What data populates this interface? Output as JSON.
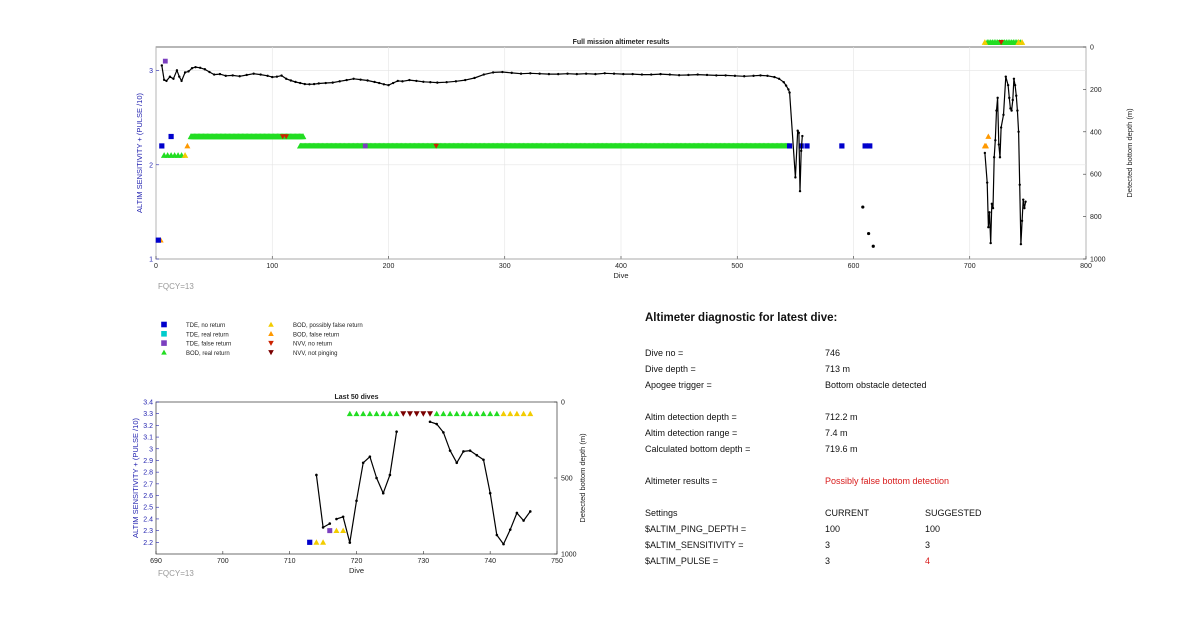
{
  "colors": {
    "tde_no_return": "#0000cc",
    "tde_real_return": "#00cccc",
    "tde_false_return": "#7b3fbf",
    "bod_real_return": "#22dd22",
    "bod_possibly_false": "#f2cc00",
    "bod_false_return": "#ff9900",
    "nvv_no_return": "#cc2200",
    "nvv_not_pinging": "#7a0000",
    "left_axis": "#2424b0",
    "depth_line": "#000000",
    "highlight": "#d81a1a"
  },
  "chart_data": [
    {
      "id": "full",
      "type": "scatter",
      "title": "Full mission altimeter results",
      "xlabel": "Dive",
      "ylabel": "ALTIM SENSITIVITY + (PULSE /10)",
      "y2label": "Detected bottom depth (m)",
      "xlim": [
        0,
        800
      ],
      "ylim": [
        1,
        3.25
      ],
      "y2lim": [
        0,
        1000
      ],
      "xticks": [
        "0",
        "100",
        "200",
        "300",
        "400",
        "500",
        "600",
        "700",
        "800"
      ],
      "yticks": [
        "1",
        "2",
        "3"
      ],
      "y2ticks": [
        "0",
        "200",
        "400",
        "600",
        "800",
        "1000"
      ],
      "grid": true,
      "footnote": "FQCY=13",
      "depth_series": [
        [
          5,
          87
        ],
        [
          7,
          155
        ],
        [
          9,
          160
        ],
        [
          12,
          140
        ],
        [
          15,
          150
        ],
        [
          18,
          110
        ],
        [
          20,
          140
        ],
        [
          22,
          160
        ],
        [
          25,
          120
        ],
        [
          28,
          115
        ],
        [
          31,
          100
        ],
        [
          34,
          95
        ],
        [
          38,
          98
        ],
        [
          42,
          105
        ],
        [
          46,
          118
        ],
        [
          50,
          130
        ],
        [
          55,
          128
        ],
        [
          60,
          136
        ],
        [
          66,
          134
        ],
        [
          72,
          138
        ],
        [
          78,
          132
        ],
        [
          84,
          126
        ],
        [
          90,
          130
        ],
        [
          96,
          136
        ],
        [
          100,
          142
        ],
        [
          104,
          140
        ],
        [
          108,
          135
        ],
        [
          112,
          150
        ],
        [
          116,
          158
        ],
        [
          120,
          165
        ],
        [
          124,
          170
        ],
        [
          128,
          175
        ],
        [
          132,
          176
        ],
        [
          136,
          175
        ],
        [
          140,
          172
        ],
        [
          146,
          170
        ],
        [
          152,
          168
        ],
        [
          158,
          162
        ],
        [
          164,
          156
        ],
        [
          170,
          150
        ],
        [
          176,
          154
        ],
        [
          182,
          158
        ],
        [
          188,
          165
        ],
        [
          192,
          170
        ],
        [
          196,
          176
        ],
        [
          200,
          180
        ],
        [
          204,
          170
        ],
        [
          208,
          160
        ],
        [
          212,
          162
        ],
        [
          218,
          156
        ],
        [
          224,
          160
        ],
        [
          230,
          164
        ],
        [
          236,
          166
        ],
        [
          242,
          168
        ],
        [
          250,
          166
        ],
        [
          258,
          162
        ],
        [
          266,
          156
        ],
        [
          274,
          146
        ],
        [
          282,
          130
        ],
        [
          290,
          120
        ],
        [
          298,
          118
        ],
        [
          306,
          122
        ],
        [
          314,
          126
        ],
        [
          322,
          124
        ],
        [
          330,
          126
        ],
        [
          338,
          128
        ],
        [
          346,
          128
        ],
        [
          354,
          126
        ],
        [
          362,
          128
        ],
        [
          370,
          126
        ],
        [
          378,
          128
        ],
        [
          386,
          124
        ],
        [
          394,
          126
        ],
        [
          402,
          128
        ],
        [
          410,
          128
        ],
        [
          418,
          130
        ],
        [
          426,
          130
        ],
        [
          434,
          128
        ],
        [
          442,
          130
        ],
        [
          450,
          133
        ],
        [
          458,
          132
        ],
        [
          466,
          130
        ],
        [
          474,
          132
        ],
        [
          482,
          134
        ],
        [
          490,
          134
        ],
        [
          498,
          136
        ],
        [
          506,
          138
        ],
        [
          514,
          136
        ],
        [
          520,
          134
        ],
        [
          526,
          136
        ],
        [
          532,
          142
        ],
        [
          536,
          150
        ],
        [
          540,
          166
        ],
        [
          542,
          182
        ],
        [
          544,
          200
        ],
        [
          545,
          215
        ],
        [
          550,
          615
        ],
        [
          552,
          395
        ],
        [
          553,
          405
        ],
        [
          554,
          680
        ],
        [
          555,
          490
        ],
        [
          556,
          420
        ]
      ],
      "depth_isolated": [
        [
          608,
          755
        ],
        [
          613,
          880
        ],
        [
          617,
          940
        ]
      ],
      "depth_late": [
        [
          713,
          500
        ],
        [
          715,
          640
        ],
        [
          716,
          850
        ],
        [
          717,
          780
        ],
        [
          718,
          925
        ],
        [
          719,
          740
        ],
        [
          720,
          760
        ],
        [
          721,
          520
        ],
        [
          722,
          440
        ],
        [
          723,
          300
        ],
        [
          724,
          240
        ],
        [
          725,
          460
        ],
        [
          726,
          520
        ],
        [
          727,
          380
        ],
        [
          729,
          320
        ],
        [
          731,
          140
        ],
        [
          733,
          180
        ],
        [
          734,
          240
        ],
        [
          735,
          290
        ],
        [
          736,
          300
        ],
        [
          737,
          250
        ],
        [
          738,
          150
        ],
        [
          739,
          180
        ],
        [
          740,
          230
        ],
        [
          741,
          300
        ],
        [
          742,
          400
        ],
        [
          743,
          650
        ],
        [
          744,
          930
        ],
        [
          745,
          820
        ],
        [
          746,
          720
        ],
        [
          747,
          760
        ],
        [
          748,
          730
        ]
      ],
      "tde_no_return": [
        [
          2,
          1.2
        ],
        [
          5,
          2.2
        ],
        [
          13,
          2.3
        ],
        [
          545,
          2.2
        ],
        [
          555,
          2.2
        ],
        [
          560,
          2.2
        ],
        [
          590,
          2.2
        ],
        [
          610,
          2.2
        ],
        [
          614,
          2.2
        ]
      ],
      "tde_false_return": [
        [
          8,
          3.1
        ],
        [
          180,
          2.2
        ]
      ],
      "bod_real_low": [
        [
          7,
          2.1
        ],
        [
          10,
          2.1
        ],
        [
          13,
          2.1
        ],
        [
          16,
          2.1
        ],
        [
          19,
          2.1
        ],
        [
          22,
          2.1
        ]
      ],
      "bod_possibly_false": [
        [
          25,
          2.1
        ],
        [
          713,
          3.3
        ],
        [
          742,
          3.3
        ],
        [
          745,
          3.3
        ]
      ],
      "bod_false_return": [
        [
          4,
          1.2
        ],
        [
          27,
          2.2
        ],
        [
          713,
          2.2
        ],
        [
          714,
          2.2
        ],
        [
          716,
          2.3
        ]
      ],
      "nvv_no_return": [
        [
          109,
          2.3
        ],
        [
          112,
          2.3
        ],
        [
          241,
          2.2
        ],
        [
          727,
          3.3
        ]
      ],
      "bod_band_a": [
        30,
        127,
        2.3
      ],
      "bod_band_b": [
        124,
        545,
        2.2
      ],
      "bod_band_c": [
        715,
        744,
        3.3
      ]
    },
    {
      "id": "last50",
      "type": "scatter",
      "title": "Last 50 dives",
      "xlabel": "Dive",
      "ylabel": "ALTIM SENSITIVITY + (PULSE /10)",
      "y2label": "Detected bottom depth (m)",
      "xlim": [
        690,
        750
      ],
      "ylim": [
        2.1,
        3.4
      ],
      "y2lim": [
        0,
        1000
      ],
      "xticks": [
        "690",
        "700",
        "710",
        "720",
        "730",
        "740",
        "750"
      ],
      "yticks": [
        "2.2",
        "2.3",
        "2.4",
        "2.5",
        "2.6",
        "2.7",
        "2.8",
        "2.9",
        "3",
        "3.1",
        "3.2",
        "3.3",
        "3.4"
      ],
      "y2ticks": [
        "0",
        "500",
        "1000"
      ],
      "grid": false,
      "footnote": "FQCY=13",
      "depth_segment_a": [
        [
          714,
          480
        ],
        [
          715,
          825
        ],
        [
          716,
          800
        ]
      ],
      "depth_segment_b": [
        [
          717,
          770
        ],
        [
          718,
          755
        ],
        [
          719,
          925
        ],
        [
          720,
          650
        ],
        [
          721,
          400
        ],
        [
          722,
          360
        ],
        [
          723,
          500
        ],
        [
          724,
          600
        ],
        [
          725,
          480
        ],
        [
          726,
          195
        ]
      ],
      "depth_segment_c": [
        [
          731,
          130
        ],
        [
          732,
          145
        ],
        [
          733,
          200
        ],
        [
          734,
          320
        ],
        [
          735,
          400
        ],
        [
          736,
          325
        ],
        [
          737,
          320
        ],
        [
          738,
          350
        ],
        [
          739,
          380
        ],
        [
          740,
          600
        ],
        [
          741,
          875
        ],
        [
          742,
          935
        ],
        [
          743,
          840
        ],
        [
          744,
          730
        ],
        [
          745,
          780
        ],
        [
          746,
          720
        ]
      ],
      "tde_no_return": [
        [
          713,
          2.2
        ]
      ],
      "tde_false_return": [
        [
          716,
          2.3
        ]
      ],
      "bod_possibly_false": [
        [
          714,
          2.2
        ],
        [
          715,
          2.2
        ],
        [
          717,
          2.3
        ],
        [
          718,
          2.3
        ],
        [
          742,
          3.3
        ],
        [
          743,
          3.3
        ],
        [
          744,
          3.3
        ],
        [
          745,
          3.3
        ],
        [
          746,
          3.3
        ]
      ],
      "bod_real_return": [
        [
          719,
          3.3
        ],
        [
          720,
          3.3
        ],
        [
          721,
          3.3
        ],
        [
          722,
          3.3
        ],
        [
          723,
          3.3
        ],
        [
          724,
          3.3
        ],
        [
          725,
          3.3
        ],
        [
          726,
          3.3
        ],
        [
          732,
          3.3
        ],
        [
          733,
          3.3
        ],
        [
          734,
          3.3
        ],
        [
          735,
          3.3
        ],
        [
          736,
          3.3
        ],
        [
          737,
          3.3
        ],
        [
          738,
          3.3
        ],
        [
          739,
          3.3
        ],
        [
          740,
          3.3
        ],
        [
          741,
          3.3
        ]
      ],
      "nvv_not_pinging": [
        [
          727,
          3.3
        ],
        [
          728,
          3.3
        ],
        [
          729,
          3.3
        ],
        [
          730,
          3.3
        ],
        [
          731,
          3.3
        ]
      ]
    }
  ],
  "legend": {
    "items": [
      {
        "label": "TDE, no return",
        "marker": "square",
        "color": "#0000cc"
      },
      {
        "label": "TDE, real return",
        "marker": "square",
        "color": "#00cccc"
      },
      {
        "label": "TDE, false return",
        "marker": "square",
        "color": "#7b3fbf"
      },
      {
        "label": "BOD, real return",
        "marker": "tri-up",
        "color": "#22dd22"
      },
      {
        "label": "BOD, possibly false return",
        "marker": "tri-up",
        "color": "#f2cc00"
      },
      {
        "label": "BOD, false return",
        "marker": "tri-up",
        "color": "#ff9900"
      },
      {
        "label": "NVV, no return",
        "marker": "tri-down",
        "color": "#cc2200"
      },
      {
        "label": "NVV, not pinging",
        "marker": "tri-down",
        "color": "#7a0000"
      }
    ]
  },
  "diagnostic": {
    "title": "Altimeter diagnostic for latest dive:",
    "dive_no_label": "Dive no =",
    "dive_no": "746",
    "dive_depth_label": "Dive depth =",
    "dive_depth": "713 m",
    "apogee_label": "Apogee trigger =",
    "apogee": "Bottom obstacle detected",
    "detection_depth_label": "Altim detection depth =",
    "detection_depth": "712.2 m",
    "detection_range_label": "Altim detection range =",
    "detection_range": "7.4 m",
    "bottom_depth_label": "Calculated bottom depth =",
    "bottom_depth": "719.6 m",
    "results_label": "Altimeter results =",
    "results": "Possibly false bottom detection",
    "settings_header": "Settings",
    "current_header": "CURRENT",
    "suggested_header": "SUGGESTED",
    "ping_depth_label": "$ALTIM_PING_DEPTH =",
    "ping_depth_current": "100",
    "ping_depth_suggested": "100",
    "sensitivity_label": "$ALTIM_SENSITIVITY =",
    "sensitivity_current": "3",
    "sensitivity_suggested": "3",
    "pulse_label": "$ALTIM_PULSE =",
    "pulse_current": "3",
    "pulse_suggested": "4"
  }
}
